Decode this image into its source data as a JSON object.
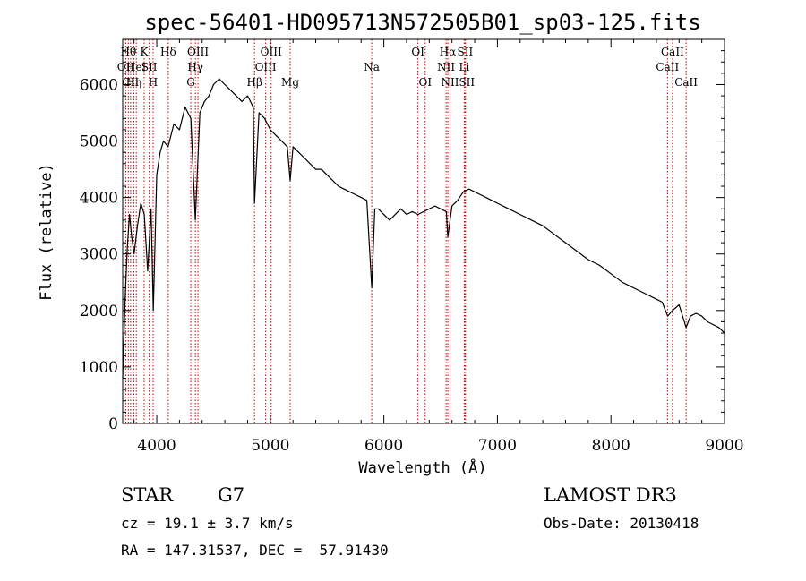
{
  "chart_data": {
    "type": "line",
    "title": "spec-56401-HD095713N572505B01_sp03-125.fits",
    "xlabel": "Wavelength (Å)",
    "ylabel": "Flux (relative)",
    "xlim": [
      3700,
      9000
    ],
    "ylim": [
      0,
      6800
    ],
    "x_ticks": [
      {
        "value": 4000,
        "label": "4000"
      },
      {
        "value": 5000,
        "label": "5000"
      },
      {
        "value": 6000,
        "label": "6000"
      },
      {
        "value": 7000,
        "label": "7000"
      },
      {
        "value": 8000,
        "label": "8000"
      },
      {
        "value": 9000,
        "label": "9000"
      }
    ],
    "y_ticks": [
      {
        "value": 0,
        "label": "0"
      },
      {
        "value": 1000,
        "label": "1000"
      },
      {
        "value": 2000,
        "label": "2000"
      },
      {
        "value": 3000,
        "label": "3000"
      },
      {
        "value": 4000,
        "label": "4000"
      },
      {
        "value": 5000,
        "label": "5000"
      },
      {
        "value": 6000,
        "label": "6000"
      }
    ],
    "grid": false,
    "series": [
      {
        "color": "#000000",
        "x": [
          3700,
          3720,
          3740,
          3760,
          3780,
          3800,
          3830,
          3860,
          3890,
          3920,
          3950,
          3970,
          4000,
          4030,
          4060,
          4100,
          4150,
          4200,
          4250,
          4300,
          4340,
          4380,
          4420,
          4460,
          4500,
          4550,
          4600,
          4650,
          4700,
          4750,
          4800,
          4850,
          4861,
          4900,
          4950,
          5000,
          5050,
          5100,
          5150,
          5175,
          5200,
          5250,
          5300,
          5350,
          5400,
          5450,
          5500,
          5550,
          5600,
          5650,
          5700,
          5750,
          5800,
          5850,
          5893,
          5920,
          5950,
          6000,
          6050,
          6100,
          6150,
          6200,
          6250,
          6300,
          6350,
          6400,
          6450,
          6500,
          6550,
          6563,
          6600,
          6650,
          6700,
          6750,
          6800,
          6850,
          6900,
          6950,
          7000,
          7100,
          7200,
          7300,
          7400,
          7500,
          7600,
          7700,
          7800,
          7900,
          8000,
          8100,
          8200,
          8300,
          8400,
          8450,
          8500,
          8542,
          8600,
          8662,
          8700,
          8750,
          8800,
          8850,
          8900,
          8950,
          9000
        ],
        "values": [
          800,
          2100,
          3100,
          3700,
          3300,
          3000,
          3500,
          3900,
          3700,
          2700,
          3800,
          2000,
          4400,
          4800,
          5000,
          4900,
          5300,
          5200,
          5600,
          5400,
          3600,
          5500,
          5700,
          5800,
          6000,
          6100,
          6000,
          5900,
          5800,
          5700,
          5800,
          5600,
          3900,
          5500,
          5400,
          5200,
          5100,
          5000,
          4900,
          4300,
          4900,
          4800,
          4700,
          4600,
          4500,
          4500,
          4400,
          4300,
          4200,
          4150,
          4100,
          4050,
          4000,
          3950,
          2400,
          3800,
          3800,
          3700,
          3600,
          3700,
          3800,
          3700,
          3750,
          3700,
          3750,
          3800,
          3850,
          3800,
          3750,
          3300,
          3850,
          3950,
          4100,
          4150,
          4100,
          4050,
          4000,
          3950,
          3900,
          3800,
          3700,
          3600,
          3500,
          3350,
          3200,
          3050,
          2900,
          2800,
          2650,
          2500,
          2400,
          2300,
          2200,
          2150,
          1900,
          2000,
          2100,
          1700,
          1900,
          1950,
          1900,
          1800,
          1750,
          1700,
          1600
        ]
      }
    ],
    "line_markers": [
      {
        "wavelength": 3727,
        "label": "OII",
        "row": 2
      },
      {
        "wavelength": 3750,
        "label": "Hθ",
        "row": 1
      },
      {
        "wavelength": 3770,
        "label": "CII",
        "row": 3
      },
      {
        "wavelength": 3798,
        "label": "Hη",
        "row": 3
      },
      {
        "wavelength": 3820,
        "label": "HeI",
        "row": 2
      },
      {
        "wavelength": 3889,
        "label": "K",
        "row": 1
      },
      {
        "wavelength": 3934,
        "label": "SII",
        "row": 2
      },
      {
        "wavelength": 3968,
        "label": "H",
        "row": 3
      },
      {
        "wavelength": 4101,
        "label": "Hδ",
        "row": 1
      },
      {
        "wavelength": 4300,
        "label": "G",
        "row": 3
      },
      {
        "wavelength": 4340,
        "label": "Hγ",
        "row": 2
      },
      {
        "wavelength": 4363,
        "label": "OIII",
        "row": 1
      },
      {
        "wavelength": 4861,
        "label": "Hβ",
        "row": 3
      },
      {
        "wavelength": 4959,
        "label": "OIII",
        "row": 2
      },
      {
        "wavelength": 5007,
        "label": "OIII",
        "row": 1
      },
      {
        "wavelength": 5175,
        "label": "Mg",
        "row": 3
      },
      {
        "wavelength": 5893,
        "label": "Na",
        "row": 2
      },
      {
        "wavelength": 6300,
        "label": "OI",
        "row": 1
      },
      {
        "wavelength": 6364,
        "label": "OI",
        "row": 3
      },
      {
        "wavelength": 6548,
        "label": "NII",
        "row": 2
      },
      {
        "wavelength": 6563,
        "label": "Hα",
        "row": 1
      },
      {
        "wavelength": 6583,
        "label": "NII",
        "row": 3
      },
      {
        "wavelength": 6708,
        "label": "Li",
        "row": 2
      },
      {
        "wavelength": 6716,
        "label": "SII",
        "row": 1
      },
      {
        "wavelength": 6731,
        "label": "SII",
        "row": 3
      },
      {
        "wavelength": 8498,
        "label": "CaII",
        "row": 2
      },
      {
        "wavelength": 8542,
        "label": "CaII",
        "row": 1
      },
      {
        "wavelength": 8662,
        "label": "CaII",
        "row": 3
      }
    ],
    "marker_color": "#cc0000"
  },
  "info": {
    "object_class": "STAR",
    "subclass": "G7",
    "survey": "LAMOST DR3",
    "cz": "cz = 19.1 ± 3.7 km/s",
    "obs_date": "Obs-Date: 20130418",
    "coords": "RA = 147.31537, DEC =  57.91430"
  }
}
